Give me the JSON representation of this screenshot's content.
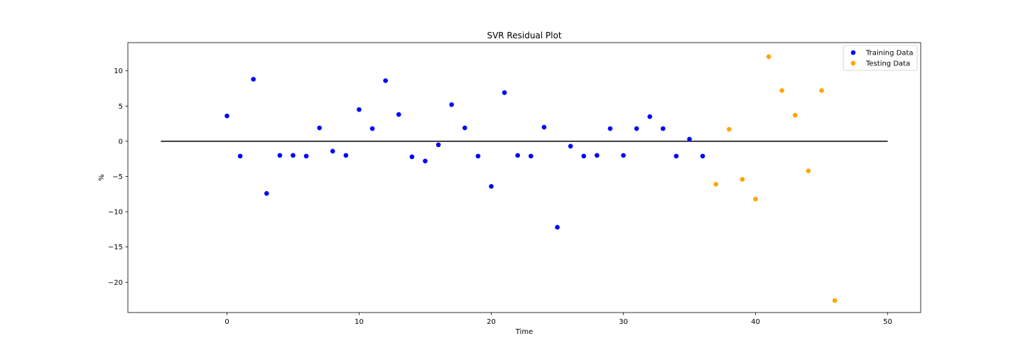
{
  "chart_data": {
    "type": "scatter",
    "title": "SVR Residual Plot",
    "xlabel": "Time",
    "ylabel": "%",
    "xlim": [
      -7.5,
      52.5
    ],
    "ylim": [
      -24.3,
      14.0
    ],
    "xticks": [
      0,
      10,
      20,
      30,
      40,
      50
    ],
    "yticks": [
      10,
      5,
      0,
      -5,
      -10,
      -15,
      -20
    ],
    "ytick_labels": [
      "10",
      "5",
      "0",
      "−5",
      "−10",
      "−15",
      "−20"
    ],
    "grid": false,
    "legend_position": "top-right",
    "hline": {
      "y": 0,
      "xmin": -5,
      "xmax": 50,
      "color": "#000000"
    },
    "series": [
      {
        "name": "Training Data",
        "color": "#0000ff",
        "x": [
          0,
          1,
          2,
          3,
          4,
          5,
          6,
          7,
          8,
          9,
          10,
          11,
          12,
          13,
          14,
          15,
          16,
          17,
          18,
          19,
          20,
          21,
          22,
          23,
          24,
          25,
          26,
          27,
          28,
          29,
          30,
          31,
          32,
          33,
          34,
          35,
          36
        ],
        "y": [
          3.6,
          -2.1,
          8.8,
          -7.4,
          -2.0,
          -2.0,
          -2.1,
          1.9,
          -1.4,
          -2.0,
          4.5,
          1.8,
          8.6,
          3.8,
          -2.2,
          -2.8,
          -0.5,
          5.2,
          1.9,
          -2.1,
          -6.4,
          6.9,
          -2.0,
          -2.1,
          2.0,
          -12.2,
          -0.7,
          -2.1,
          -2.0,
          1.8,
          -2.0,
          1.8,
          3.5,
          1.8,
          -2.1,
          0.3,
          -2.1
        ]
      },
      {
        "name": "Testing Data",
        "color": "#ffa500",
        "x": [
          37,
          38,
          39,
          40,
          41,
          42,
          43,
          44,
          45,
          46
        ],
        "y": [
          -6.1,
          1.7,
          -5.4,
          -8.2,
          12.0,
          7.2,
          3.7,
          -4.2,
          7.2,
          -22.6
        ]
      }
    ]
  }
}
